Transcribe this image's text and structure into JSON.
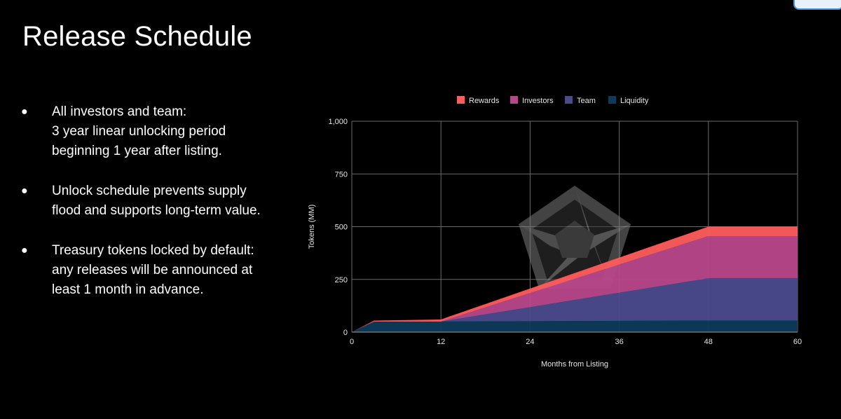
{
  "slide": {
    "title": "Release Schedule",
    "bullets": [
      {
        "lines": [
          "All investors and team:",
          "3 year linear unlocking period",
          "beginning 1 year after listing."
        ]
      },
      {
        "lines": [
          "Unlock schedule prevents supply",
          "flood and supports long-term value."
        ]
      },
      {
        "lines": [
          "Treasury tokens locked by default:",
          "any releases will be announced at",
          "least 1 month in advance."
        ]
      }
    ]
  },
  "chart_data": {
    "type": "area",
    "stacked": true,
    "x": [
      0,
      3,
      12,
      48,
      60
    ],
    "series": [
      {
        "name": "Liquidity",
        "color": "#0e3a5c",
        "values": [
          0,
          50,
          50,
          55,
          55
        ]
      },
      {
        "name": "Team",
        "color": "#4b4a8d",
        "values": [
          0,
          0,
          0,
          200,
          200
        ]
      },
      {
        "name": "Investors",
        "color": "#b8478a",
        "values": [
          0,
          0,
          0,
          200,
          200
        ]
      },
      {
        "name": "Rewards",
        "color": "#ff5d5d",
        "values": [
          0,
          5,
          10,
          45,
          45
        ]
      }
    ],
    "legend_order": [
      "Rewards",
      "Investors",
      "Team",
      "Liquidity"
    ],
    "legend_position": "top",
    "xlabel": "Months from Listing",
    "ylabel": "Tokens (MM)",
    "xlim": [
      0,
      60
    ],
    "ylim": [
      0,
      1000
    ],
    "x_ticks": [
      0,
      12,
      24,
      36,
      48,
      60
    ],
    "y_ticks": [
      0,
      250,
      500,
      750,
      1000
    ],
    "y_tick_labels": [
      "0",
      "250",
      "500",
      "750",
      "1,000"
    ],
    "grid": true,
    "watermark_icon": "pentagon-logo-icon"
  }
}
